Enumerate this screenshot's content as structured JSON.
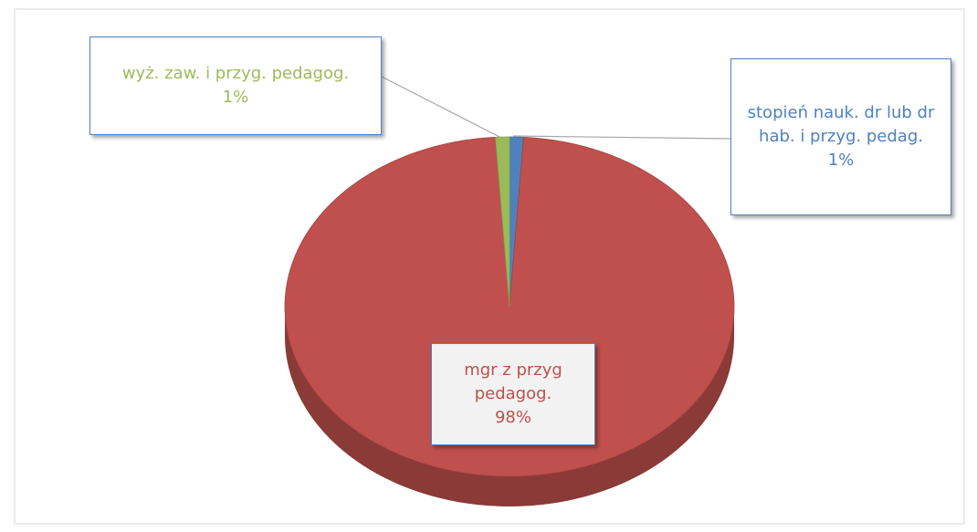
{
  "chart_data": {
    "type": "pie",
    "categories": [
      "stopień nauk. dr lub dr hab. i przyg. pedag.",
      "mgr z przyg pedagog.",
      "wyż. zaw. i przyg. pedagog."
    ],
    "values": [
      1,
      98,
      1
    ],
    "value_labels": [
      "1%",
      "98%",
      "1%"
    ],
    "colors": [
      "#4f81bd",
      "#c0504d",
      "#9bbb59"
    ]
  }
}
